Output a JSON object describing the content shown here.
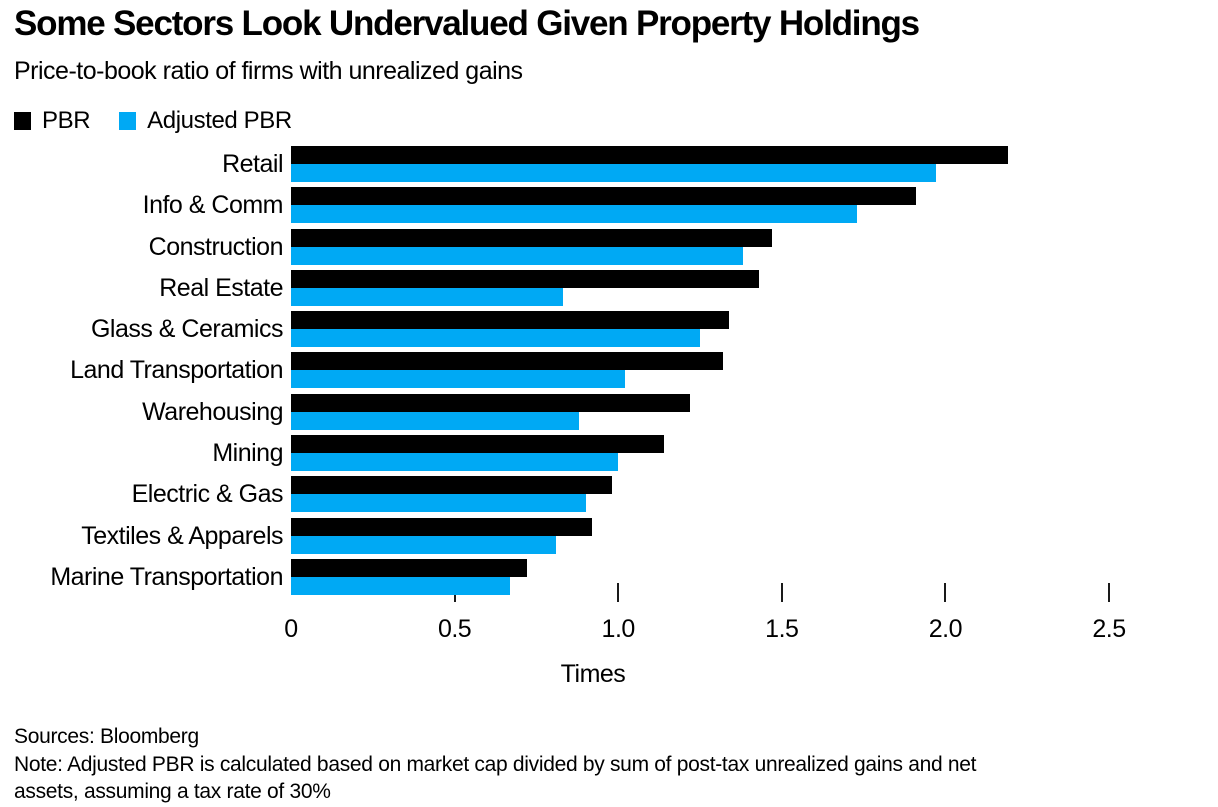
{
  "header": {
    "title": "Some Sectors Look Undervalued Given Property Holdings",
    "subtitle": "Price-to-book ratio of firms with unrealized gains"
  },
  "colors": {
    "pbr": "#000000",
    "adjusted_pbr": "#00a9f4",
    "text": "#000000",
    "background": "#ffffff"
  },
  "chart_data": {
    "type": "bar",
    "orientation": "horizontal",
    "title": "Some Sectors Look Undervalued Given Property Holdings",
    "subtitle": "Price-to-book ratio of firms with unrealized gains",
    "categories": [
      "Retail",
      "Info & Comm",
      "Construction",
      "Real Estate",
      "Glass & Ceramics",
      "Land Transportation",
      "Warehousing",
      "Mining",
      "Electric & Gas",
      "Textiles & Apparels",
      "Marine Transportation"
    ],
    "series": [
      {
        "name": "PBR",
        "color": "#000000",
        "values": [
          2.19,
          1.91,
          1.47,
          1.43,
          1.34,
          1.32,
          1.22,
          1.14,
          0.98,
          0.92,
          0.72
        ]
      },
      {
        "name": "Adjusted PBR",
        "color": "#00a9f4",
        "values": [
          1.97,
          1.73,
          1.38,
          0.83,
          1.25,
          1.02,
          0.88,
          1.0,
          0.9,
          0.81,
          0.67
        ]
      }
    ],
    "xlabel": "Times",
    "xlim": [
      0,
      2.5
    ],
    "xticks": [
      0,
      0.5,
      1.0,
      1.5,
      2.0,
      2.5
    ],
    "xtick_labels": [
      "0",
      "0.5",
      "1.0",
      "1.5",
      "2.0",
      "2.5"
    ],
    "tick_marks": [
      0.5,
      1.0,
      1.5,
      2.0,
      2.5
    ],
    "grid": false,
    "legend_position": "top-left"
  },
  "footer": {
    "sources": "Sources: Bloomberg",
    "note_lines": [
      "Note: Adjusted PBR is calculated based on market cap divided by sum of post-tax unrealized gains and net",
      "assets, assuming a tax rate of 30%"
    ]
  }
}
